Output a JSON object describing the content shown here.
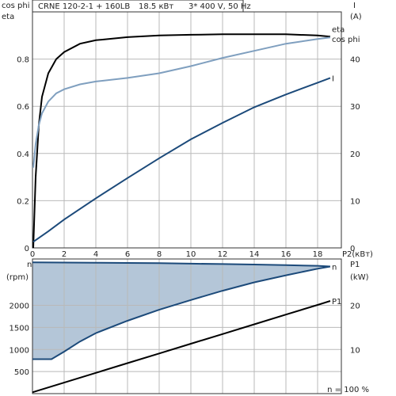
{
  "header": {
    "pump_model": "CRNE 120-2-1 + 160LB",
    "power": "18.5 кВт",
    "supply": "3* 400 V, 50 Hz"
  },
  "chart_data": [
    {
      "type": "line",
      "title": "",
      "xlabel": "P2(кВт)",
      "ylabel_left": "cos phi\neta",
      "ylabel_right": "I\n(A)",
      "xlim": [
        0,
        19.5
      ],
      "ylim_left": [
        0,
        1.0
      ],
      "ylim_right": [
        0,
        50
      ],
      "x_ticks": [
        0,
        2,
        4,
        6,
        8,
        10,
        12,
        14,
        16,
        18
      ],
      "y_left_ticks": [
        0,
        0.2,
        0.4,
        0.6,
        0.8
      ],
      "y_right_ticks": [
        0,
        10,
        20,
        30,
        40
      ],
      "grid": true,
      "legend": "inline-right",
      "series": [
        {
          "name": "eta",
          "axis": "left",
          "color": "#000000",
          "x": [
            0.05,
            0.2,
            0.4,
            0.6,
            1.0,
            1.5,
            2.0,
            3.0,
            4.0,
            6.0,
            8.0,
            10.0,
            12.0,
            14.0,
            16.0,
            18.0,
            18.8
          ],
          "y": [
            0.0,
            0.3,
            0.52,
            0.64,
            0.74,
            0.8,
            0.83,
            0.865,
            0.88,
            0.893,
            0.9,
            0.903,
            0.905,
            0.905,
            0.905,
            0.9,
            0.895
          ]
        },
        {
          "name": "cos phi",
          "axis": "left",
          "color": "#7f9fbf",
          "x": [
            0.05,
            0.2,
            0.4,
            0.6,
            1.0,
            1.5,
            2.0,
            3.0,
            4.0,
            6.0,
            8.0,
            10.0,
            12.0,
            14.0,
            16.0,
            18.0,
            18.8
          ],
          "y": [
            0.34,
            0.44,
            0.52,
            0.57,
            0.62,
            0.655,
            0.672,
            0.693,
            0.705,
            0.72,
            0.74,
            0.77,
            0.805,
            0.835,
            0.865,
            0.885,
            0.892
          ]
        },
        {
          "name": "I",
          "axis": "right",
          "color": "#1c4a7a",
          "x": [
            0.05,
            1.0,
            2.0,
            4.0,
            6.0,
            8.0,
            10.0,
            12.0,
            14.0,
            16.0,
            18.0,
            18.8
          ],
          "y": [
            1.3,
            3.5,
            6.0,
            10.5,
            14.8,
            19.0,
            23.0,
            26.5,
            29.8,
            32.5,
            35.0,
            36.0
          ]
        }
      ]
    },
    {
      "type": "line",
      "title": "",
      "xlabel": "",
      "ylabel_left": "n\n(rpm)",
      "ylabel_right": "P1\n(kW)",
      "xlim": [
        0,
        19.5
      ],
      "ylim_left": [
        0,
        3050
      ],
      "ylim_right": [
        0,
        30.5
      ],
      "y_left_ticks": [
        500,
        1000,
        1500,
        2000
      ],
      "y_right_ticks": [
        10,
        20
      ],
      "grid": true,
      "legend": "inline-right",
      "annotation": "n  = 100 %",
      "series": [
        {
          "name": "n",
          "axis": "left",
          "color": "#1c4a7a",
          "x": [
            0.0,
            2.0,
            4.0,
            6.0,
            8.0,
            10.0,
            12.0,
            14.0,
            16.0,
            18.0,
            18.8
          ],
          "y": [
            2975,
            2970,
            2965,
            2960,
            2955,
            2945,
            2935,
            2925,
            2910,
            2895,
            2880
          ]
        },
        {
          "name": "n lower bound",
          "axis": "left",
          "color": "#1c4a7a",
          "x": [
            0.0,
            1.2,
            2.0,
            3.0,
            4.0,
            6.0,
            8.0,
            10.0,
            12.0,
            14.0,
            16.0,
            18.0,
            18.8
          ],
          "y": [
            780,
            780,
            950,
            1180,
            1370,
            1650,
            1900,
            2120,
            2330,
            2520,
            2680,
            2830,
            2880
          ]
        },
        {
          "name": "P1",
          "axis": "right",
          "color": "#000000",
          "x": [
            0.0,
            2.0,
            4.0,
            6.0,
            8.0,
            10.0,
            12.0,
            14.0,
            16.0,
            18.0,
            18.8
          ],
          "y": [
            0.3,
            2.5,
            4.7,
            6.9,
            9.1,
            11.3,
            13.5,
            15.7,
            17.9,
            20.1,
            21.0
          ]
        }
      ]
    }
  ]
}
